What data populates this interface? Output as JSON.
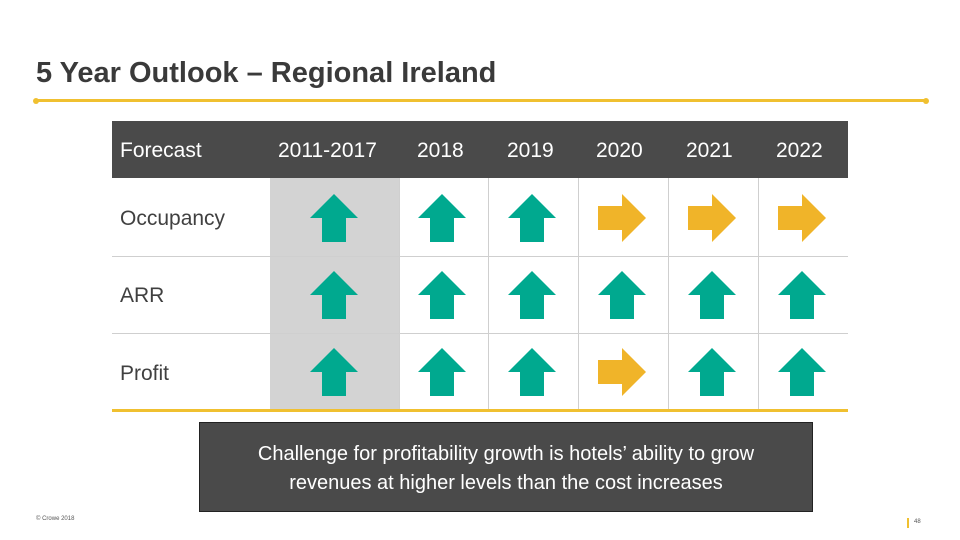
{
  "title": "5 Year Outlook – Regional Ireland",
  "table": {
    "headers": [
      "Forecast",
      "2011-2017",
      "2018",
      "2019",
      "2020",
      "2021",
      "2022"
    ],
    "rows": [
      {
        "label": "Occupancy",
        "trends": [
          "up",
          "up",
          "up",
          "flat",
          "flat",
          "flat"
        ]
      },
      {
        "label": "ARR",
        "trends": [
          "up",
          "up",
          "up",
          "up",
          "up",
          "up"
        ]
      },
      {
        "label": "Profit",
        "trends": [
          "up",
          "up",
          "up",
          "flat",
          "up",
          "up"
        ]
      }
    ]
  },
  "colors": {
    "up_arrow": "#00a98f",
    "flat_arrow": "#f0b429",
    "header_bg": "#4a4a4a",
    "accent": "#f0c030"
  },
  "icons": {
    "up": "arrow-up-icon",
    "flat": "arrow-right-icon"
  },
  "callout": {
    "line1": "Challenge for profitability growth is hotels’ ability to grow",
    "line2": "revenues at higher levels than the cost increases"
  },
  "footer": {
    "copyright": "© Crowe 2018",
    "page": "48"
  }
}
